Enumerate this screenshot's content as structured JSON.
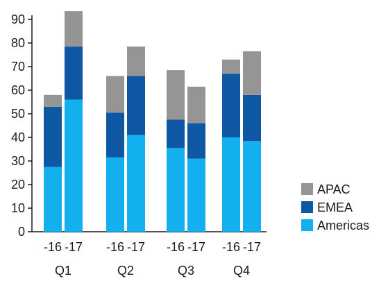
{
  "chart_data": {
    "type": "bar",
    "stacked": true,
    "groups": [
      "Q1",
      "Q2",
      "Q3",
      "Q4"
    ],
    "categories": [
      "-16",
      "-17",
      "-16",
      "-17",
      "-16",
      "-17",
      "-16",
      "-17"
    ],
    "category_group": [
      "Q1",
      "Q1",
      "Q2",
      "Q2",
      "Q3",
      "Q3",
      "Q4",
      "Q4"
    ],
    "series": [
      {
        "name": "Americas",
        "color": "#12b0ef",
        "values": [
          27.5,
          56,
          31.5,
          41,
          35.5,
          31,
          40,
          38.5
        ]
      },
      {
        "name": "EMEA",
        "color": "#0e58a3",
        "values": [
          25.5,
          22.5,
          19,
          25,
          12,
          15,
          27,
          19.5
        ]
      },
      {
        "name": "APAC",
        "color": "#959595",
        "values": [
          5,
          15,
          15.5,
          12.5,
          21,
          15.5,
          6,
          18.5
        ]
      }
    ],
    "ylim": [
      0,
      90
    ],
    "yticks": [
      0,
      10,
      20,
      30,
      40,
      50,
      60,
      70,
      80,
      90
    ],
    "grid": false,
    "legend_position": "right",
    "legend_order": [
      "APAC",
      "EMEA",
      "Americas"
    ]
  }
}
